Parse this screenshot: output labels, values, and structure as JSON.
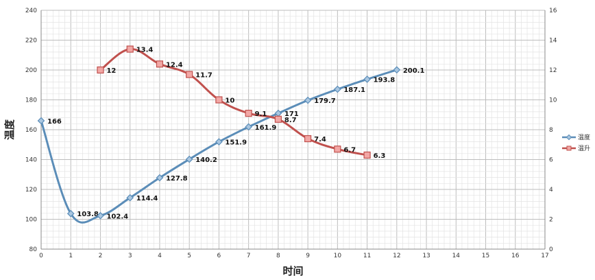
{
  "chart_data": {
    "type": "line",
    "xlabel": "时间",
    "ylabel": "温度",
    "x_ticks": [
      0,
      1,
      2,
      3,
      4,
      5,
      6,
      7,
      8,
      9,
      10,
      11,
      12,
      13,
      14,
      15,
      16,
      17
    ],
    "xlim": [
      0,
      17
    ],
    "ylim_left": [
      80,
      240
    ],
    "y_ticks_left": [
      80,
      100,
      120,
      140,
      160,
      180,
      200,
      220,
      240
    ],
    "ylim_right": [
      0,
      16
    ],
    "y_ticks_right": [
      0,
      2,
      4,
      6,
      8,
      10,
      12,
      14,
      16
    ],
    "grid": true,
    "legend_position": "right",
    "series": [
      {
        "name": "温度",
        "axis": "left",
        "color": "#5b8db8",
        "marker": "diamond",
        "x": [
          0,
          1,
          2,
          3,
          4,
          5,
          6,
          7,
          8,
          9,
          10,
          11,
          12
        ],
        "values": [
          166,
          103.8,
          102.4,
          114.4,
          127.8,
          140.2,
          151.9,
          161.9,
          171,
          179.7,
          187.1,
          193.8,
          200.1
        ],
        "labels": [
          "166",
          "103.8",
          "102.4",
          "114.4",
          "127.8",
          "140.2",
          "151.9",
          "161.9",
          "171",
          "179.7",
          "187.1",
          "193.8",
          "200.1"
        ]
      },
      {
        "name": "温升",
        "axis": "right",
        "color": "#c0504d",
        "marker": "square",
        "x": [
          2,
          3,
          4,
          5,
          6,
          7,
          8,
          9,
          10,
          11
        ],
        "values": [
          12,
          13.4,
          12.4,
          11.7,
          10,
          9.1,
          8.7,
          7.4,
          6.7,
          6.3
        ],
        "labels": [
          "12",
          "13.4",
          "12.4",
          "11.7",
          "10",
          "9.1",
          "8.7",
          "7.4",
          "6.7",
          "6.3"
        ]
      }
    ]
  }
}
